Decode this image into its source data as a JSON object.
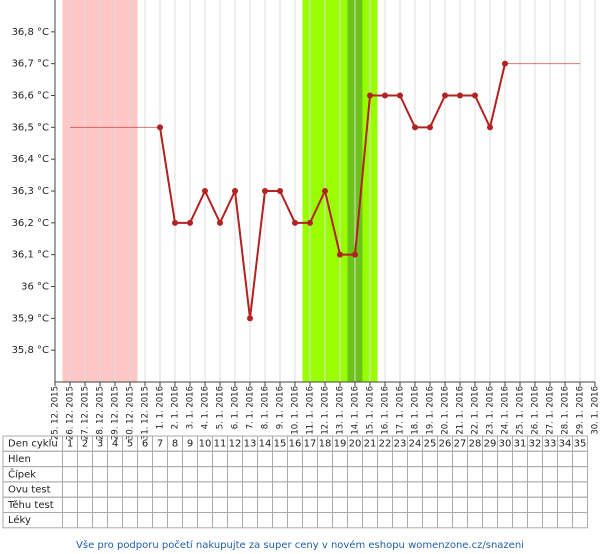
{
  "chart_data": {
    "type": "line",
    "x": [
      "25. 12. 2015",
      "26. 12. 2015",
      "27. 12. 2015",
      "28. 12. 2015",
      "29. 12. 2015",
      "30. 12. 2015",
      "31. 12. 2015",
      "1. 1. 2016",
      "2. 1. 2016",
      "3. 1. 2016",
      "4. 1. 2016",
      "5. 1. 2016",
      "6. 1. 2016",
      "7. 1. 2016",
      "8. 1. 2016",
      "9. 1. 2016",
      "10. 1. 2016",
      "11. 1. 2016",
      "12. 1. 2016",
      "13. 1. 2016",
      "14. 1. 2016",
      "15. 1. 2016",
      "16. 1. 2016",
      "17. 1. 2016",
      "18. 1. 2016",
      "19. 1. 2016",
      "20. 1. 2016",
      "21. 1. 2016",
      "22. 1. 2016",
      "23. 1. 2016",
      "24. 1. 2016",
      "25. 1. 2016",
      "26. 1. 2016",
      "27. 1. 2016",
      "28. 1. 2016",
      "29. 1. 2016",
      "30. 1. 2016"
    ],
    "series": [
      {
        "color": "#b22222",
        "values": [
          null,
          null,
          null,
          null,
          null,
          null,
          null,
          36.5,
          36.2,
          36.2,
          36.3,
          36.2,
          36.3,
          35.9,
          36.3,
          36.3,
          36.2,
          36.2,
          36.3,
          36.1,
          36.1,
          36.6,
          36.6,
          36.6,
          36.5,
          36.5,
          36.6,
          36.6,
          36.6,
          36.5,
          36.7,
          null,
          null,
          null,
          null,
          null,
          null
        ]
      }
    ],
    "ylim": [
      35.7,
      36.9
    ],
    "yticks": [
      {
        "value": 35.8,
        "label": "35,8 °C"
      },
      {
        "value": 35.9,
        "label": "35,9 °C"
      },
      {
        "value": 36,
        "label": "36 °C"
      },
      {
        "value": 36.1,
        "label": "36,1 °C"
      },
      {
        "value": 36.2,
        "label": "36,2 °C"
      },
      {
        "value": 36.3,
        "label": "36,3 °C"
      },
      {
        "value": 36.4,
        "label": "36,4 °C"
      },
      {
        "value": 36.5,
        "label": "36,5 °C"
      },
      {
        "value": 36.6,
        "label": "36,6 °C"
      },
      {
        "value": 36.7,
        "label": "36,7 °C"
      },
      {
        "value": 36.8,
        "label": "36,8 °C"
      }
    ],
    "grid": true,
    "shading": [
      {
        "from": 1,
        "to": 5,
        "color": "#ffc6c6"
      },
      {
        "from": 17,
        "to": 21,
        "color": "#99ff00"
      },
      {
        "from": 20,
        "to": 20,
        "color": "#6cc41a"
      }
    ]
  },
  "table": {
    "row_labels": [
      "Den cyklu",
      "Hlen",
      "Čípek",
      "Ovu test",
      "Těhu test",
      "Léky"
    ],
    "days": [
      1,
      2,
      3,
      4,
      5,
      6,
      7,
      8,
      9,
      10,
      11,
      12,
      13,
      14,
      15,
      16,
      17,
      18,
      19,
      20,
      21,
      22,
      23,
      24,
      25,
      26,
      27,
      28,
      29,
      30,
      31,
      32,
      33,
      34,
      35
    ]
  },
  "footer": "Vše pro podporu početí nakupujte za super ceny v novém eshopu womenzone.cz/snazeni"
}
